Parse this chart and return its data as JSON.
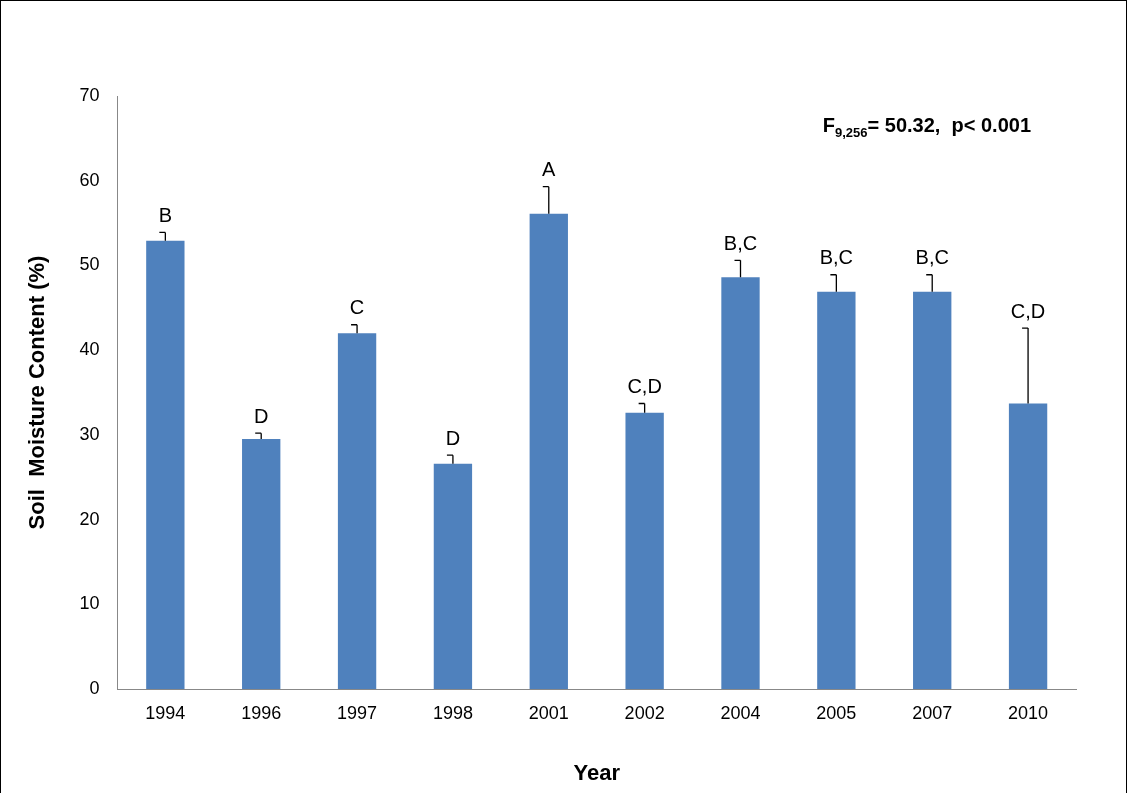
{
  "chart_data": {
    "type": "bar",
    "xlabel": "Year",
    "ylabel": "Soil  Moisture Content (%)",
    "categories": [
      "1994",
      "1996",
      "1997",
      "1998",
      "2001",
      "2002",
      "2004",
      "2005",
      "2007",
      "2010"
    ],
    "values": [
      52.9,
      29.5,
      42.0,
      26.6,
      56.1,
      32.6,
      48.6,
      46.9,
      46.9,
      33.7
    ],
    "errors": [
      [
        52.9,
        53.9
      ],
      [
        29.5,
        30.2
      ],
      [
        42.0,
        43.0
      ],
      [
        26.6,
        27.6
      ],
      [
        56.1,
        59.3
      ],
      [
        32.6,
        33.7
      ],
      [
        48.6,
        50.6
      ],
      [
        46.9,
        48.9
      ],
      [
        46.9,
        48.9
      ],
      [
        33.7,
        42.6
      ]
    ],
    "color": "#4f81bd",
    "ylim": [
      0,
      70
    ],
    "yticks": [
      0,
      10,
      20,
      30,
      40,
      50,
      60,
      70
    ],
    "grid": false,
    "legend": false,
    "annotations": [
      {
        "text": "B",
        "x": "1994",
        "y": 53.9
      },
      {
        "text": "D",
        "x": "1996",
        "y": 30.2
      },
      {
        "text": "C",
        "x": "1997",
        "y": 43.0
      },
      {
        "text": "D",
        "x": "1998",
        "y": 27.6
      },
      {
        "text": "A",
        "x": "2001",
        "y": 59.3
      },
      {
        "text": "C,D",
        "x": "2002",
        "y": 33.7
      },
      {
        "text": "B,C",
        "x": "2004",
        "y": 50.6
      },
      {
        "text": "B,C",
        "x": "2005",
        "y": 48.9
      },
      {
        "text": "B,C",
        "x": "2007",
        "y": 48.9
      },
      {
        "text": "C,D",
        "x": "2010",
        "y": 42.6
      },
      "F$_{9,256}$= 50.32,  p< 0.001"
    ]
  }
}
